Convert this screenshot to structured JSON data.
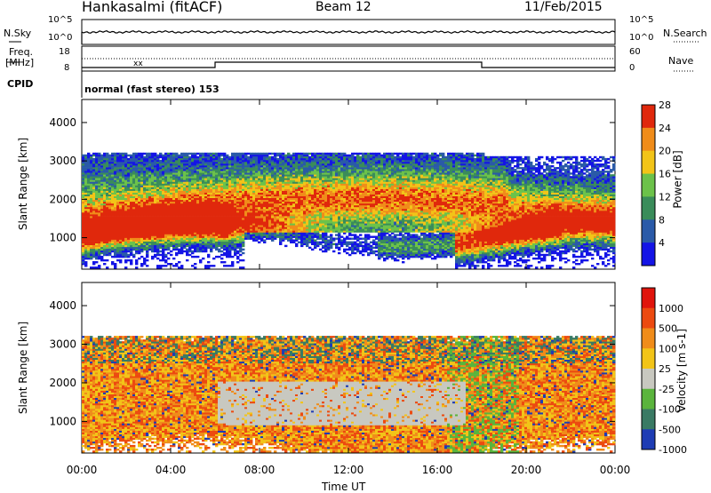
{
  "header": {
    "station": "Hankasalmi (fitACF)",
    "beam": "Beam 12",
    "date": "11/Feb/2015"
  },
  "noise_panel": {
    "left_label": "N.Sky",
    "right_label": "N.Search",
    "left_ticks": [
      "10^5",
      "10^0"
    ],
    "right_ticks": [
      "10^5",
      "10^0"
    ]
  },
  "freq_panel": {
    "left_label_line1": "Freq.",
    "left_label_line2": "[MHz]",
    "left_ticks": [
      "18",
      "8"
    ],
    "right_label": "Nave",
    "right_ticks": [
      "60",
      "0"
    ]
  },
  "cpid_panel": {
    "label": "CPID",
    "program": "normal (fast stereo) 153"
  },
  "chart_data": [
    {
      "type": "heatmap",
      "title": "Power",
      "xlabel": "Time UT",
      "ylabel": "Slant Range [km]",
      "colorbar_label": "Power [dB]",
      "x_range": [
        "00:00",
        "24:00"
      ],
      "ylim": [
        180,
        4600
      ],
      "y_ticks": [
        "1000",
        "2000",
        "3000",
        "4000"
      ],
      "colorbar_ticks": [
        "4",
        "8",
        "12",
        "16",
        "20",
        "24",
        "28"
      ],
      "colors": [
        "#1414e6",
        "#2a5aa8",
        "#3a8c5a",
        "#6cc24a",
        "#f2c418",
        "#f08c1a",
        "#e0280c"
      ]
    },
    {
      "type": "heatmap",
      "title": "Velocity",
      "xlabel": "Time UT",
      "ylabel": "Slant Range [km]",
      "colorbar_label": "Velocity [m s-1]",
      "x_range": [
        "00:00",
        "24:00"
      ],
      "ylim": [
        180,
        4600
      ],
      "y_ticks": [
        "1000",
        "2000",
        "3000",
        "4000"
      ],
      "colorbar_ticks": [
        "1000",
        "500",
        "100",
        "25",
        "-25",
        "-100",
        "-500",
        "-1000"
      ],
      "colors": [
        "#1e3cb4",
        "#3a7a64",
        "#5ab43c",
        "#c8c8c0",
        "#f2c418",
        "#f08c1a",
        "#ec4a10",
        "#e0140c"
      ]
    }
  ],
  "x_ticks": [
    "00:00",
    "04:00",
    "08:00",
    "12:00",
    "16:00",
    "20:00",
    "00:00"
  ],
  "x_label": "Time UT"
}
